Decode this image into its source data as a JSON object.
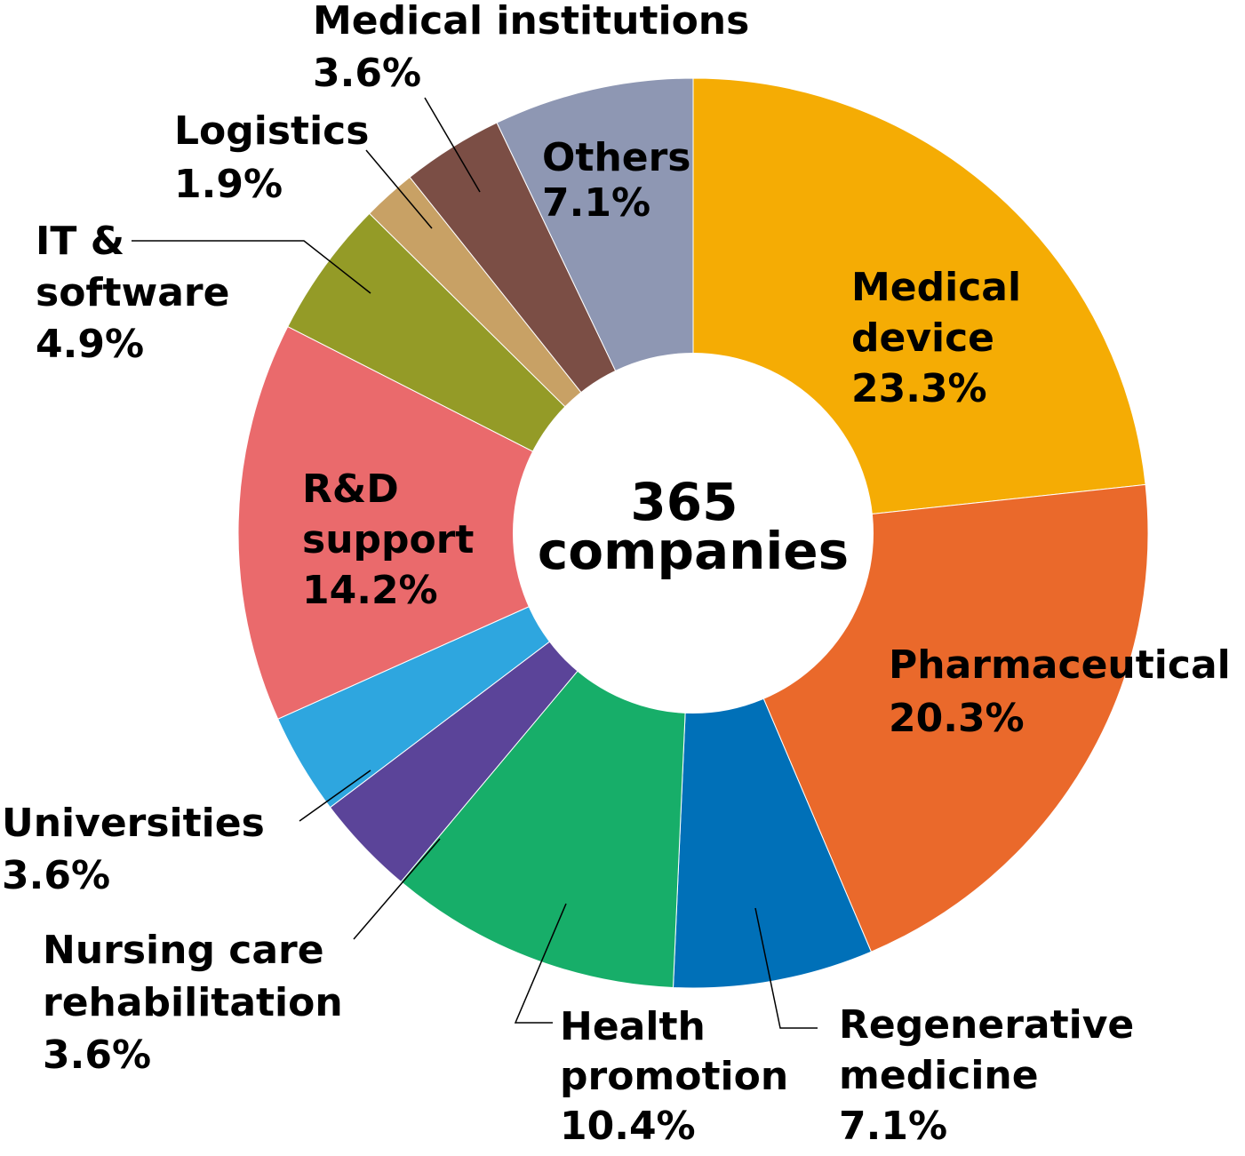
{
  "chart_data": {
    "type": "pie",
    "donut": true,
    "center_text": [
      "365",
      "companies"
    ],
    "unit": "%",
    "slices": [
      {
        "label": [
          "Medical",
          "device"
        ],
        "value": 23.3,
        "value_text": "23.3%",
        "color": "#F5AC04"
      },
      {
        "label": [
          "Pharmaceutical"
        ],
        "value": 20.3,
        "value_text": "20.3%",
        "color": "#EA692B"
      },
      {
        "label": [
          "Regenerative",
          "medicine"
        ],
        "value": 7.1,
        "value_text": "7.1%",
        "color": "#0070B8"
      },
      {
        "label": [
          "Health",
          "promotion"
        ],
        "value": 10.4,
        "value_text": "10.4%",
        "color": "#17AE69"
      },
      {
        "label": [
          "Nursing care",
          "rehabilitation"
        ],
        "value": 3.6,
        "value_text": "3.6%",
        "color": "#5B4499"
      },
      {
        "label": [
          "Universities"
        ],
        "value": 3.6,
        "value_text": "3.6%",
        "color": "#2EA6DF"
      },
      {
        "label": [
          "R&D",
          "support"
        ],
        "value": 14.2,
        "value_text": "14.2%",
        "color": "#EA6A6C"
      },
      {
        "label": [
          "IT &",
          "software"
        ],
        "value": 4.9,
        "value_text": "4.9%",
        "color": "#949B27"
      },
      {
        "label": [
          "Logistics"
        ],
        "value": 1.9,
        "value_text": "1.9%",
        "color": "#C8A165"
      },
      {
        "label": [
          "Medical institutions"
        ],
        "value": 3.6,
        "value_text": "3.6%",
        "color": "#7B4E45"
      },
      {
        "label": [
          "Others"
        ],
        "value": 7.1,
        "value_text": "7.1%",
        "color": "#8E97B3"
      }
    ]
  }
}
